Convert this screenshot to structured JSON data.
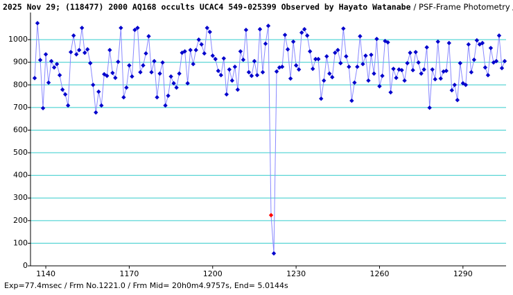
{
  "chart_data": {
    "type": "line",
    "title": "2025 Nov 29; (118477) 2000 AQ168 occults UCAC4 549-025399 Observed by Hayato Watanabe",
    "subtitle": "/ PSF-Frame Photometry /",
    "annotation": "Exp=77.4msec / Frm No.1221.0 / Frm Mid= 20h0m4.9757s,  End= 5.0144s",
    "x": [
      1136,
      1137,
      1138,
      1139,
      1140,
      1141,
      1142,
      1143,
      1144,
      1145,
      1146,
      1147,
      1148,
      1149,
      1150,
      1151,
      1152,
      1153,
      1154,
      1155,
      1156,
      1157,
      1158,
      1159,
      1160,
      1161,
      1162,
      1163,
      1164,
      1165,
      1166,
      1167,
      1168,
      1169,
      1170,
      1171,
      1172,
      1173,
      1174,
      1175,
      1176,
      1177,
      1178,
      1179,
      1180,
      1181,
      1182,
      1183,
      1184,
      1185,
      1186,
      1187,
      1188,
      1189,
      1190,
      1191,
      1192,
      1193,
      1194,
      1195,
      1196,
      1197,
      1198,
      1199,
      1200,
      1201,
      1202,
      1203,
      1204,
      1205,
      1206,
      1207,
      1208,
      1209,
      1210,
      1211,
      1212,
      1213,
      1214,
      1215,
      1216,
      1217,
      1218,
      1219,
      1220,
      1221,
      1222,
      1223,
      1224,
      1225,
      1226,
      1227,
      1228,
      1229,
      1230,
      1231,
      1232,
      1233,
      1234,
      1235,
      1236,
      1237,
      1238,
      1239,
      1240,
      1241,
      1242,
      1243,
      1244,
      1245,
      1246,
      1247,
      1248,
      1249,
      1250,
      1251,
      1252,
      1253,
      1254,
      1255,
      1256,
      1257,
      1258,
      1259,
      1260,
      1261,
      1262,
      1263,
      1264,
      1265,
      1266,
      1267,
      1268,
      1269,
      1270,
      1271,
      1272,
      1273,
      1274,
      1275,
      1276,
      1277,
      1278,
      1279,
      1280,
      1281,
      1282,
      1283,
      1284,
      1285,
      1286,
      1287,
      1288,
      1289,
      1290,
      1291,
      1292,
      1293,
      1294,
      1295,
      1296,
      1297,
      1298,
      1299,
      1300,
      1301,
      1302,
      1303,
      1304,
      1305
    ],
    "series": [
      {
        "color": "#0000cc",
        "line_color": "#8888ff",
        "values": [
          830,
          1073,
          910,
          697,
          935,
          810,
          905,
          877,
          892,
          843,
          779,
          758,
          709,
          945,
          1018,
          935,
          954,
          1052,
          942,
          957,
          896,
          800,
          678,
          770,
          709,
          847,
          840,
          954,
          853,
          831,
          902,
          1052,
          745,
          788,
          886,
          837,
          1043,
          1052,
          856,
          886,
          939,
          1015,
          856,
          905,
          745,
          850,
          899,
          709,
          752,
          837,
          807,
          788,
          850,
          942,
          948,
          807,
          954,
          892,
          954,
          1000,
          979,
          939,
          1052,
          1034,
          929,
          914,
          862,
          843,
          917,
          758,
          868,
          819,
          880,
          779,
          948,
          911,
          1043,
          856,
          840,
          905,
          843,
          1046,
          856,
          982,
          1061,
          224,
          55,
          859,
          877,
          880,
          1021,
          957,
          828,
          991,
          886,
          868,
          1031,
          1046,
          1018,
          948,
          871,
          914,
          914,
          739,
          819,
          926,
          850,
          834,
          942,
          954,
          896,
          1049,
          926,
          880,
          730,
          810,
          880,
          1015,
          892,
          929,
          819,
          933,
          850,
          1003,
          794,
          840,
          994,
          988,
          767,
          871,
          831,
          868,
          865,
          819,
          896,
          942,
          865,
          945,
          899,
          850,
          868,
          966,
          699,
          868,
          825,
          991,
          828,
          859,
          862,
          985,
          776,
          800,
          733,
          896,
          807,
          800,
          979,
          856,
          911,
          997,
          979,
          985,
          877,
          843,
          963,
          899,
          905,
          1018,
          874,
          905
        ]
      }
    ],
    "highlight": {
      "x": 1221,
      "color": "#ff0000"
    },
    "xlim": [
      1134.5,
      1305.5
    ],
    "xticks": [
      1140,
      1170,
      1200,
      1230,
      1260,
      1290
    ],
    "ylim": [
      0,
      1120
    ],
    "yticks": [
      0,
      100,
      200,
      300,
      400,
      500,
      600,
      700,
      800,
      900,
      1000
    ],
    "grid": true,
    "grid_color": "#33cccc"
  }
}
